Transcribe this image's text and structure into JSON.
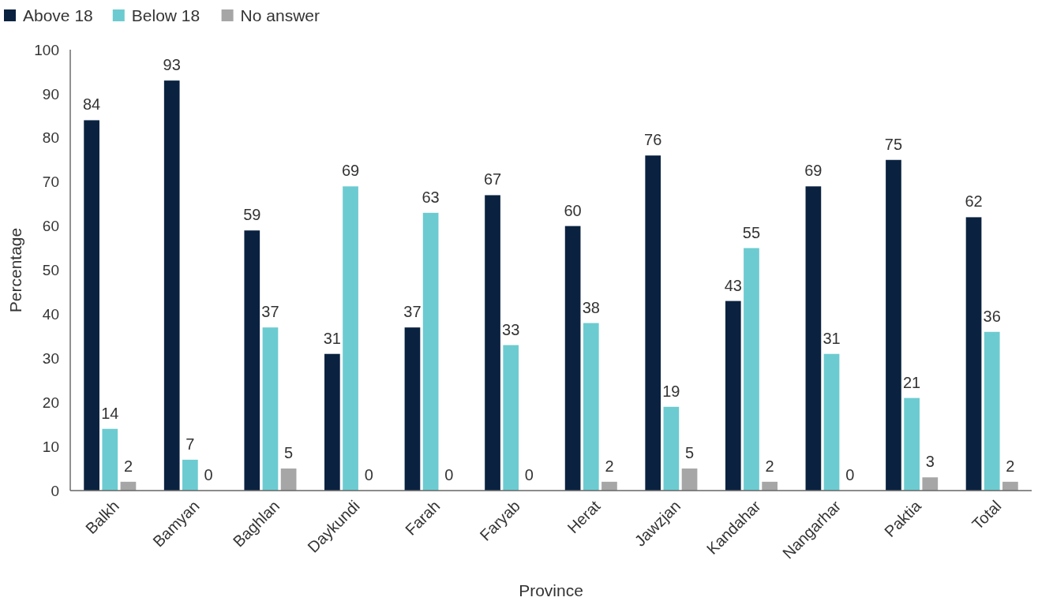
{
  "chart_data": {
    "type": "bar",
    "xlabel": "Province",
    "ylabel": "Percentage",
    "categories": [
      "Balkh",
      "Bamyan",
      "Baghlan",
      "Daykundi",
      "Farah",
      "Faryab",
      "Herat",
      "Jawzjan",
      "Kandahar",
      "Nangarhar",
      "Paktia",
      "Total"
    ],
    "series": [
      {
        "name": "Above 18",
        "color": "#0a2240",
        "values": [
          84,
          93,
          59,
          31,
          37,
          67,
          60,
          76,
          43,
          69,
          75,
          62
        ]
      },
      {
        "name": "Below 18",
        "color": "#6ccbd0",
        "values": [
          14,
          7,
          37,
          69,
          63,
          33,
          38,
          19,
          55,
          31,
          21,
          36
        ]
      },
      {
        "name": "No answer",
        "color": "#a6a6a6",
        "values": [
          2,
          0,
          5,
          0,
          0,
          0,
          2,
          5,
          2,
          0,
          3,
          2
        ]
      }
    ],
    "ylim": [
      0,
      100
    ],
    "yticks": [
      0,
      10,
      20,
      30,
      40,
      50,
      60,
      70,
      80,
      90,
      100
    ],
    "data_labels": true,
    "legend": "top left"
  }
}
